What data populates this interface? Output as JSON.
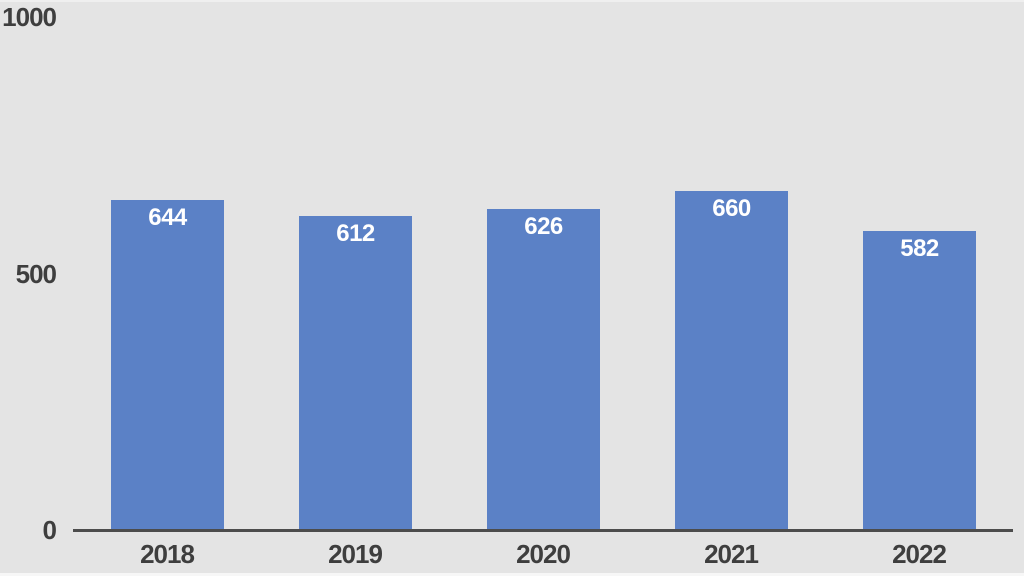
{
  "chart_data": {
    "type": "bar",
    "title": "",
    "xlabel": "",
    "ylabel": "",
    "categories": [
      "2018",
      "2019",
      "2020",
      "2021",
      "2022"
    ],
    "values": [
      644,
      612,
      626,
      660,
      582
    ],
    "data_labels": [
      "644",
      "612",
      "626",
      "660",
      "582"
    ],
    "ylim": [
      0,
      1000
    ],
    "y_ticks": [
      0,
      500,
      1000
    ],
    "y_tick_labels": [
      "0",
      "500",
      "1000"
    ],
    "grid": false,
    "legend": false,
    "data_label_position": "inside-end",
    "colors": {
      "bar": "#5B81C6",
      "background": "#E4E4E4",
      "axis_line": "#4C4C4C",
      "tick_label": "#3E3E3E",
      "data_label": "#FFFFFF"
    }
  }
}
